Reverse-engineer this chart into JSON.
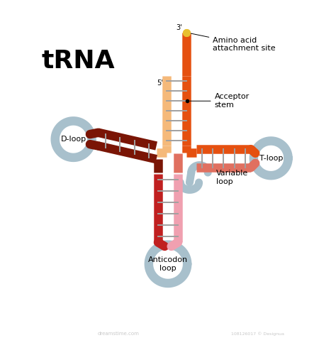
{
  "title": "tRNA",
  "bg_color": "#ffffff",
  "colors": {
    "orange_light": "#F5B97A",
    "orange_dark": "#E55010",
    "red_dark": "#7A1505",
    "red_medium": "#C02020",
    "red_light": "#E07060",
    "pink_light": "#F0A0B0",
    "blue_gray": "#A8C0CC",
    "blue_gray_light": "#C8D8E0",
    "rung_gray": "#A0A0A0",
    "yellow_dot": "#E8C030",
    "connector_orange": "#E07030"
  },
  "labels": {
    "amino_acid": "Amino acid\nattachment site",
    "three_prime": "3'",
    "five_prime": "5'",
    "acceptor_stem": "Acceptor\nstem",
    "d_loop": "D-loop",
    "t_loop": "T-loop",
    "variable_loop": "Variable\nloop",
    "anticodon_loop": "Anticodon\nloop"
  },
  "font_sizes": {
    "title": 26,
    "labels": 8,
    "prime": 7
  },
  "lw_strand": 9,
  "lw_rung": 1.4,
  "lw_loop": 9
}
